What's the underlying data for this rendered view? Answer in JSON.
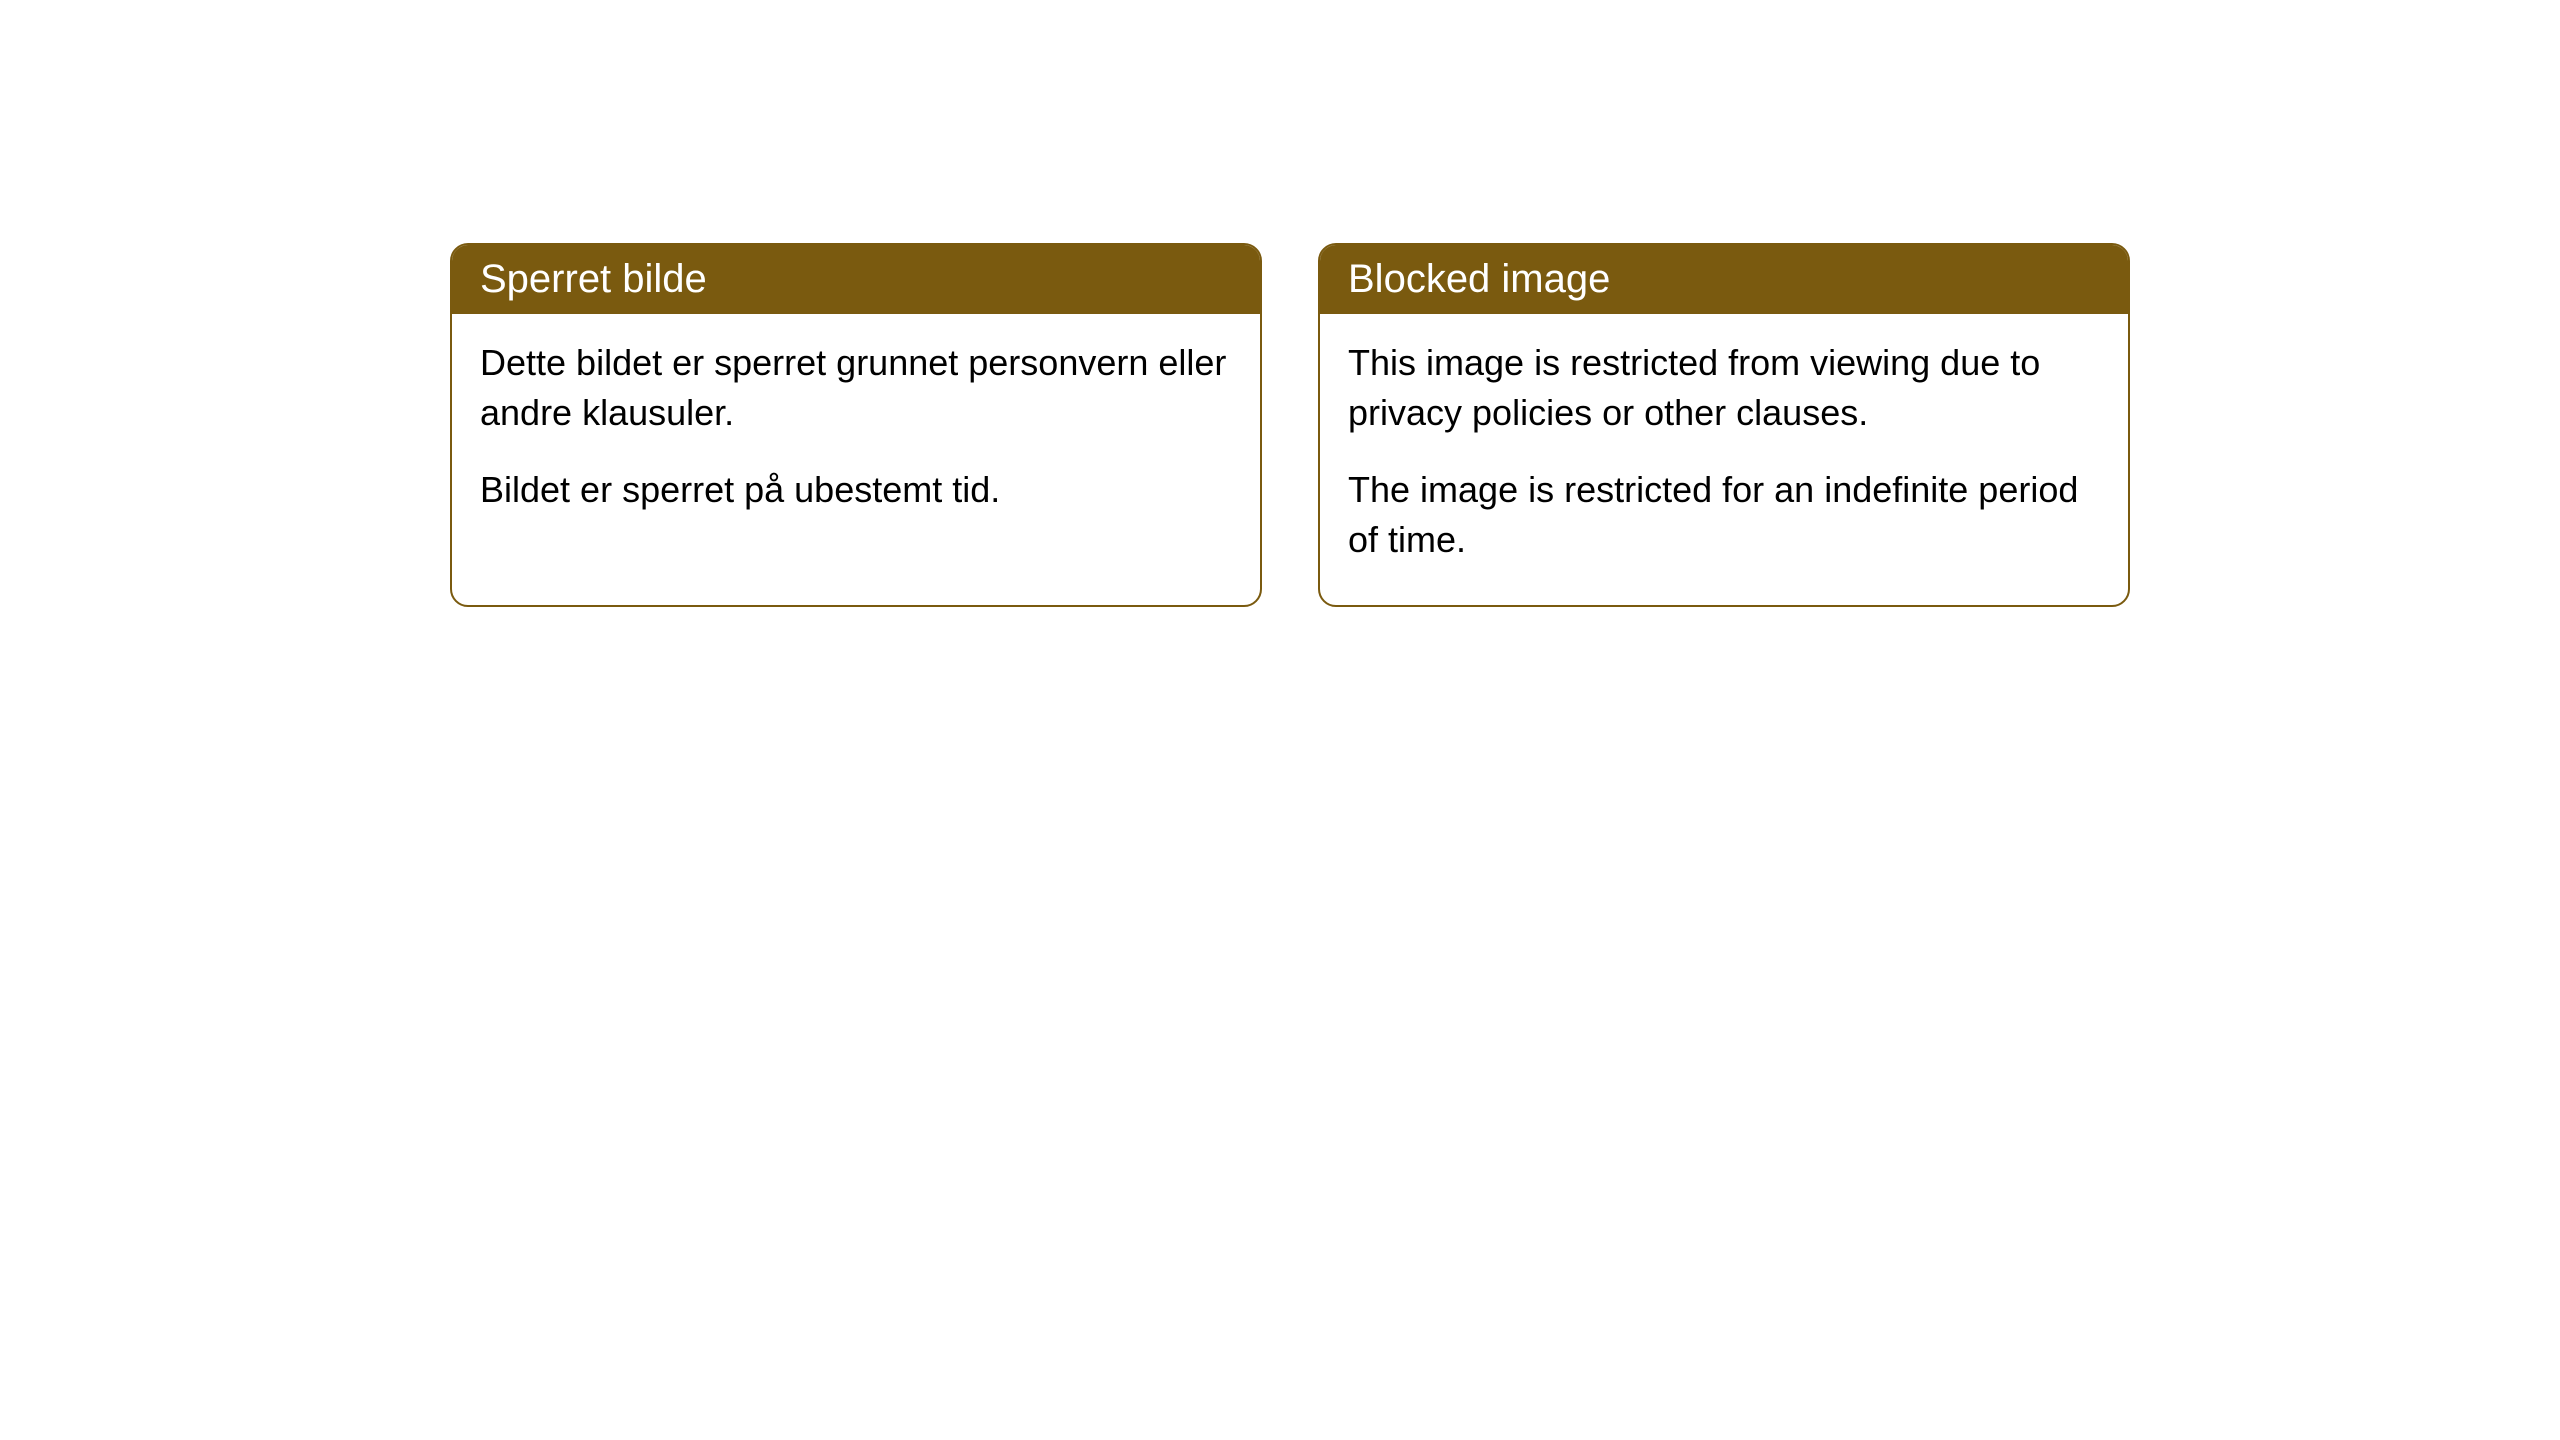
{
  "cards": [
    {
      "title": "Sperret bilde",
      "paragraph1": "Dette bildet er sperret grunnet personvern eller andre klausuler.",
      "paragraph2": "Bildet er sperret på ubestemt tid."
    },
    {
      "title": "Blocked image",
      "paragraph1": "This image is restricted from viewing due to privacy policies or other clauses.",
      "paragraph2": "The image is restricted for an indefinite period of time."
    }
  ],
  "style": {
    "header_bg": "#7a5a0f",
    "header_text": "#ffffff",
    "border_color": "#7a5a0f",
    "body_bg": "#ffffff",
    "body_text": "#000000",
    "border_radius": 18,
    "title_fontsize": 40,
    "body_fontsize": 36
  }
}
